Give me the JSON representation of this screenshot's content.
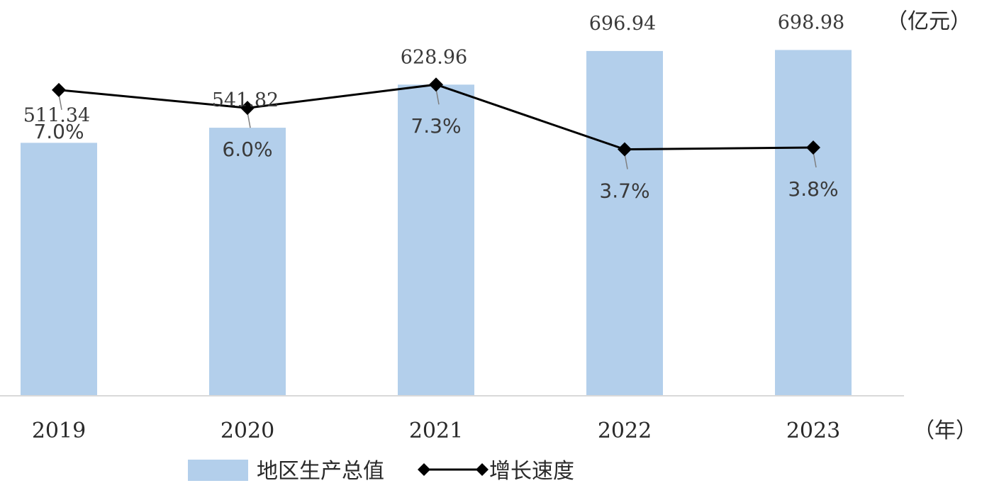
{
  "chart_data": {
    "type": "bar",
    "categories": [
      "2019",
      "2020",
      "2021",
      "2022",
      "2023"
    ],
    "series": [
      {
        "name": "地区生产总值",
        "type": "bar",
        "values": [
          511.34,
          541.82,
          628.96,
          696.94,
          698.98
        ],
        "value_labels": [
          "511.34",
          "541.82",
          "628.96",
          "696.94",
          "698.98"
        ],
        "color": "#b3cfeb"
      },
      {
        "name": "增长速度",
        "type": "line",
        "values": [
          7.0,
          6.0,
          7.3,
          3.7,
          3.8
        ],
        "value_labels": [
          "7.0%",
          "6.0%",
          "7.3%",
          "3.7%",
          "3.8%"
        ],
        "color": "#000000"
      }
    ],
    "y_unit_label": "（亿元）",
    "x_unit_label": "（年）",
    "legend_position": "bottom",
    "grid": false,
    "bar_ylim": [
      0,
      800
    ],
    "line_ylim": [
      -10,
      12
    ]
  }
}
